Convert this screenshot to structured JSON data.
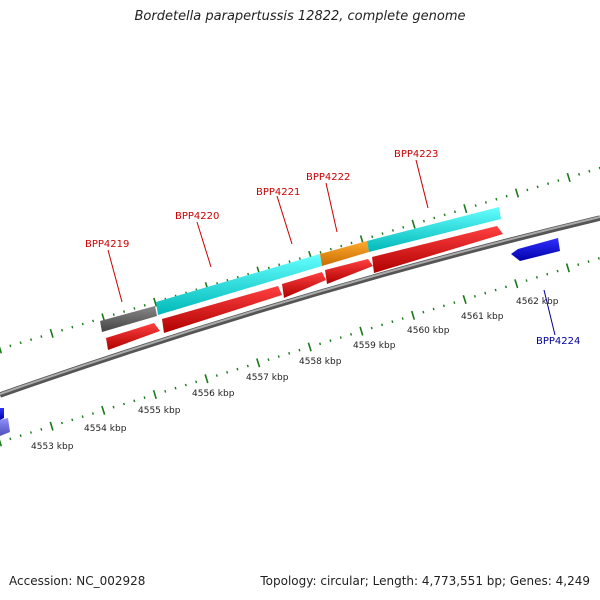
{
  "title": "Bordetella parapertussis 12822, complete genome",
  "footer": {
    "accession": "Accession: NC_002928",
    "summary": "Topology: circular; Length: 4,773,551 bp; Genes: 4,249"
  },
  "scale_labels": [
    "4553 kbp",
    "4554 kbp",
    "4555 kbp",
    "4556 kbp",
    "4557 kbp",
    "4558 kbp",
    "4559 kbp",
    "4560 kbp",
    "4561 kbp",
    "4562 kbp"
  ],
  "genes": [
    {
      "label": "BPP4219",
      "color": "#cc0000"
    },
    {
      "label": "BPP4220",
      "color": "#cc0000"
    },
    {
      "label": "BPP4221",
      "color": "#cc0000"
    },
    {
      "label": "BPP4222",
      "color": "#cc0000"
    },
    {
      "label": "BPP4223",
      "color": "#cc0000"
    },
    {
      "label": "BPP4224",
      "color": "#000099"
    }
  ],
  "colors": {
    "cds_forward": "#ee0000",
    "cds_reverse": "#0000dd",
    "cog_grey": "#666666",
    "cog_cyan": "#00e5e5",
    "cog_orange": "#f08c00",
    "cog_violet": "#7070dd",
    "ticks": "#1a7a1a",
    "backbone": "#888888"
  }
}
